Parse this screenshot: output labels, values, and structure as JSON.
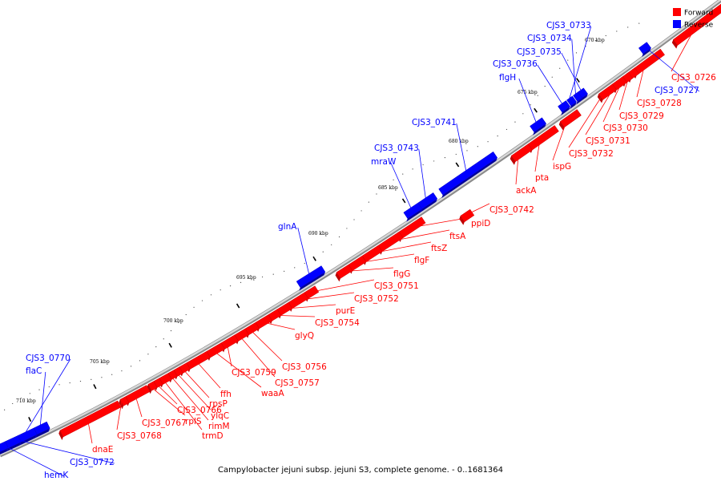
{
  "caption": "Campylobacter jejuni subsp. jejuni S3, complete genome. - 0..1681364",
  "legend": [
    {
      "label": "Forward",
      "color": "#ff0000"
    },
    {
      "label": "Reverse",
      "color": "#0000ff"
    }
  ],
  "colors": {
    "forward": "#ff0000",
    "reverse": "#0000ff",
    "backbone": "#999999"
  },
  "ticks": [
    "670 kbp",
    "675 kbp",
    "680 kbp",
    "685 kbp",
    "690 kbp",
    "695 kbp",
    "700 kbp",
    "705 kbp",
    "710 kbp"
  ],
  "genes": [
    {
      "name": "CJS3_0733",
      "strand": "reverse"
    },
    {
      "name": "CJS3_0734",
      "strand": "reverse"
    },
    {
      "name": "CJS3_0735",
      "strand": "reverse"
    },
    {
      "name": "CJS3_0736",
      "strand": "reverse"
    },
    {
      "name": "flgH",
      "strand": "reverse"
    },
    {
      "name": "CJS3_0741",
      "strand": "reverse"
    },
    {
      "name": "CJS3_0743",
      "strand": "reverse"
    },
    {
      "name": "mraW",
      "strand": "reverse"
    },
    {
      "name": "glnA",
      "strand": "reverse"
    },
    {
      "name": "CJS3_0770",
      "strand": "reverse"
    },
    {
      "name": "flaC",
      "strand": "reverse"
    },
    {
      "name": "CJS3_0727",
      "strand": "reverse"
    },
    {
      "name": "CJS3_0772",
      "strand": "reverse"
    },
    {
      "name": "hemK",
      "strand": "reverse"
    },
    {
      "name": "CJS3_0726",
      "strand": "forward"
    },
    {
      "name": "CJS3_0728",
      "strand": "forward"
    },
    {
      "name": "CJS3_0729",
      "strand": "forward"
    },
    {
      "name": "CJS3_0730",
      "strand": "forward"
    },
    {
      "name": "CJS3_0731",
      "strand": "forward"
    },
    {
      "name": "CJS3_0732",
      "strand": "forward"
    },
    {
      "name": "ispG",
      "strand": "forward"
    },
    {
      "name": "pta",
      "strand": "forward"
    },
    {
      "name": "ackA",
      "strand": "forward"
    },
    {
      "name": "CJS3_0742",
      "strand": "forward"
    },
    {
      "name": "ppiD",
      "strand": "forward"
    },
    {
      "name": "ftsA",
      "strand": "forward"
    },
    {
      "name": "ftsZ",
      "strand": "forward"
    },
    {
      "name": "flgF",
      "strand": "forward"
    },
    {
      "name": "flgG",
      "strand": "forward"
    },
    {
      "name": "CJS3_0751",
      "strand": "forward"
    },
    {
      "name": "CJS3_0752",
      "strand": "forward"
    },
    {
      "name": "purE",
      "strand": "forward"
    },
    {
      "name": "CJS3_0754",
      "strand": "forward"
    },
    {
      "name": "glyQ",
      "strand": "forward"
    },
    {
      "name": "CJS3_0756",
      "strand": "forward"
    },
    {
      "name": "CJS3_0757",
      "strand": "forward"
    },
    {
      "name": "CJS3_0759",
      "strand": "forward"
    },
    {
      "name": "waaA",
      "strand": "forward"
    },
    {
      "name": "ffh",
      "strand": "forward"
    },
    {
      "name": "rpsP",
      "strand": "forward"
    },
    {
      "name": "ylqC",
      "strand": "forward"
    },
    {
      "name": "rimM",
      "strand": "forward"
    },
    {
      "name": "trmD",
      "strand": "forward"
    },
    {
      "name": "CJS3_0766",
      "strand": "forward"
    },
    {
      "name": "rplS",
      "strand": "forward"
    },
    {
      "name": "CJS3_0767",
      "strand": "forward"
    },
    {
      "name": "CJS3_0768",
      "strand": "forward"
    },
    {
      "name": "dnaE",
      "strand": "forward"
    }
  ]
}
